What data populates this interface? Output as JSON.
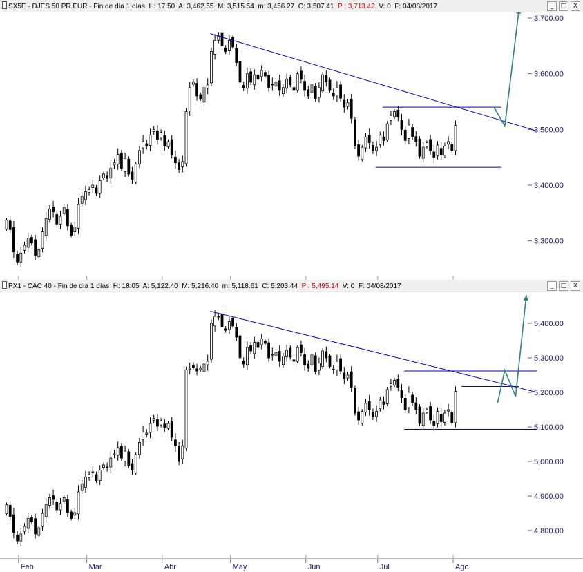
{
  "colors": {
    "bull_body": "#ffffff",
    "bear_body": "#000000",
    "wick": "#000000",
    "trendline": "#0000cc",
    "projection": "#2e7f86",
    "axis_text": "#1a1a6e",
    "header_bg": "#f0f0f0"
  },
  "window_controls": {
    "minimize_label": "_",
    "restore_label": "□",
    "close_label": "X"
  },
  "time_axis": {
    "months": [
      "Feb",
      "Mar",
      "Abr",
      "May",
      "Jun",
      "Jul",
      "Ago"
    ]
  },
  "chart_data": [
    {
      "type": "candlestick",
      "header": {
        "symbol": "SX5E - DJES 50 PR.EUR - Fin de día 1 días",
        "h": "H: 17:50",
        "a": "A: 3,462.55",
        "m": "M: 3,515.54",
        "mn": "m: 3,456.27",
        "c": "C: 3,507.41",
        "p": "P : 3,713.42",
        "v": "V: 0",
        "f": "F: 04/08/2017"
      },
      "ylim": [
        3230,
        3710
      ],
      "y_ticks": [
        {
          "v": 3300,
          "label": "3,300.00"
        },
        {
          "v": 3400,
          "label": "3,400.00"
        },
        {
          "v": 3500,
          "label": "3,500.00"
        },
        {
          "v": 3600,
          "label": "3,600.00"
        },
        {
          "v": 3700,
          "label": "3,700.00"
        }
      ],
      "closes": [
        3337,
        3320,
        3280,
        3262,
        3278,
        3292,
        3305,
        3296,
        3274,
        3284,
        3316,
        3340,
        3357,
        3352,
        3330,
        3344,
        3360,
        3327,
        3310,
        3325,
        3365,
        3380,
        3388,
        3392,
        3400,
        3385,
        3408,
        3420,
        3412,
        3430,
        3440,
        3455,
        3430,
        3448,
        3420,
        3410,
        3438,
        3462,
        3478,
        3470,
        3490,
        3500,
        3482,
        3495,
        3470,
        3478,
        3455,
        3440,
        3428,
        3442,
        3532,
        3575,
        3585,
        3560,
        3555,
        3575,
        3580,
        3640,
        3660,
        3668,
        3650,
        3640,
        3660,
        3648,
        3620,
        3585,
        3575,
        3600,
        3585,
        3598,
        3590,
        3606,
        3596,
        3575,
        3580,
        3585,
        3570,
        3575,
        3590,
        3580,
        3570,
        3600,
        3590,
        3570,
        3560,
        3580,
        3555,
        3575,
        3598,
        3585,
        3570,
        3560,
        3575,
        3556,
        3540,
        3548,
        3520,
        3470,
        3452,
        3468,
        3486,
        3476,
        3462,
        3468,
        3490,
        3480,
        3510,
        3525,
        3532,
        3522,
        3500,
        3480,
        3508,
        3487,
        3478,
        3452,
        3468,
        3476,
        3462,
        3450,
        3472,
        3455,
        3470,
        3478,
        3462,
        3507
      ],
      "trendline": {
        "from": [
          57,
          3672
        ],
        "to": [
          148,
          3497
        ]
      },
      "channel_top": {
        "from": [
          105,
          3540
        ],
        "to": [
          138,
          3540
        ]
      },
      "channel_bottom": {
        "from": [
          103,
          3432
        ],
        "to": [
          138,
          3432
        ]
      },
      "projection": [
        [
          136,
          3540
        ],
        [
          139,
          3506
        ],
        [
          143,
          3718
        ]
      ]
    },
    {
      "type": "candlestick",
      "header": {
        "symbol": "PX1 - CAC 40 - Fin de día 1 días",
        "h": "H: 18:05",
        "a": "A: 5,122.40",
        "m": "M: 5,216.40",
        "mn": "m: 5,118.61",
        "c": "C: 5,203.44",
        "p": "P : 5,495.14",
        "v": "V: 0",
        "f": "F: 04/08/2017"
      },
      "ylim": [
        4720,
        5490
      ],
      "y_ticks": [
        {
          "v": 4800,
          "label": "4,800.00"
        },
        {
          "v": 4900,
          "label": "4,900.00"
        },
        {
          "v": 5000,
          "label": "5,000.00"
        },
        {
          "v": 5100,
          "label": "5,100.00"
        },
        {
          "v": 5200,
          "label": "5,200.00"
        },
        {
          "v": 5300,
          "label": "5,300.00"
        },
        {
          "v": 5400,
          "label": "5,400.00"
        }
      ],
      "closes": [
        4875,
        4840,
        4795,
        4770,
        4790,
        4812,
        4835,
        4825,
        4790,
        4808,
        4850,
        4875,
        4895,
        4890,
        4860,
        4878,
        4895,
        4852,
        4835,
        4852,
        4912,
        4935,
        4955,
        4962,
        4970,
        4945,
        4975,
        4990,
        4982,
        5010,
        5022,
        5040,
        5010,
        5030,
        4988,
        4975,
        5020,
        5055,
        5085,
        5082,
        5110,
        5125,
        5102,
        5118,
        5098,
        5110,
        5070,
        5045,
        5000,
        5045,
        5265,
        5270,
        5272,
        5262,
        5270,
        5282,
        5290,
        5400,
        5420,
        5418,
        5390,
        5380,
        5405,
        5392,
        5360,
        5300,
        5282,
        5330,
        5320,
        5345,
        5330,
        5355,
        5342,
        5300,
        5310,
        5315,
        5290,
        5305,
        5322,
        5302,
        5290,
        5330,
        5315,
        5280,
        5270,
        5310,
        5260,
        5285,
        5320,
        5300,
        5275,
        5265,
        5290,
        5262,
        5240,
        5250,
        5215,
        5140,
        5120,
        5145,
        5168,
        5150,
        5130,
        5145,
        5178,
        5165,
        5208,
        5225,
        5235,
        5215,
        5185,
        5150,
        5200,
        5170,
        5150,
        5110,
        5140,
        5150,
        5120,
        5105,
        5145,
        5115,
        5140,
        5150,
        5112,
        5203
      ],
      "trendline": {
        "from": [
          57,
          5435
        ],
        "to": [
          148,
          5200
        ]
      },
      "channel_top": {
        "from": [
          111,
          5262
        ],
        "to": [
          148,
          5262
        ]
      },
      "channel_mid": {
        "from": [
          127,
          5217
        ],
        "to": [
          143,
          5217
        ]
      },
      "channel_bottom": {
        "from": [
          111,
          5093
        ],
        "to": [
          148,
          5093
        ]
      },
      "projection": [
        [
          137,
          5170
        ],
        [
          139,
          5264
        ],
        [
          142,
          5188
        ],
        [
          145,
          5482
        ]
      ]
    }
  ]
}
